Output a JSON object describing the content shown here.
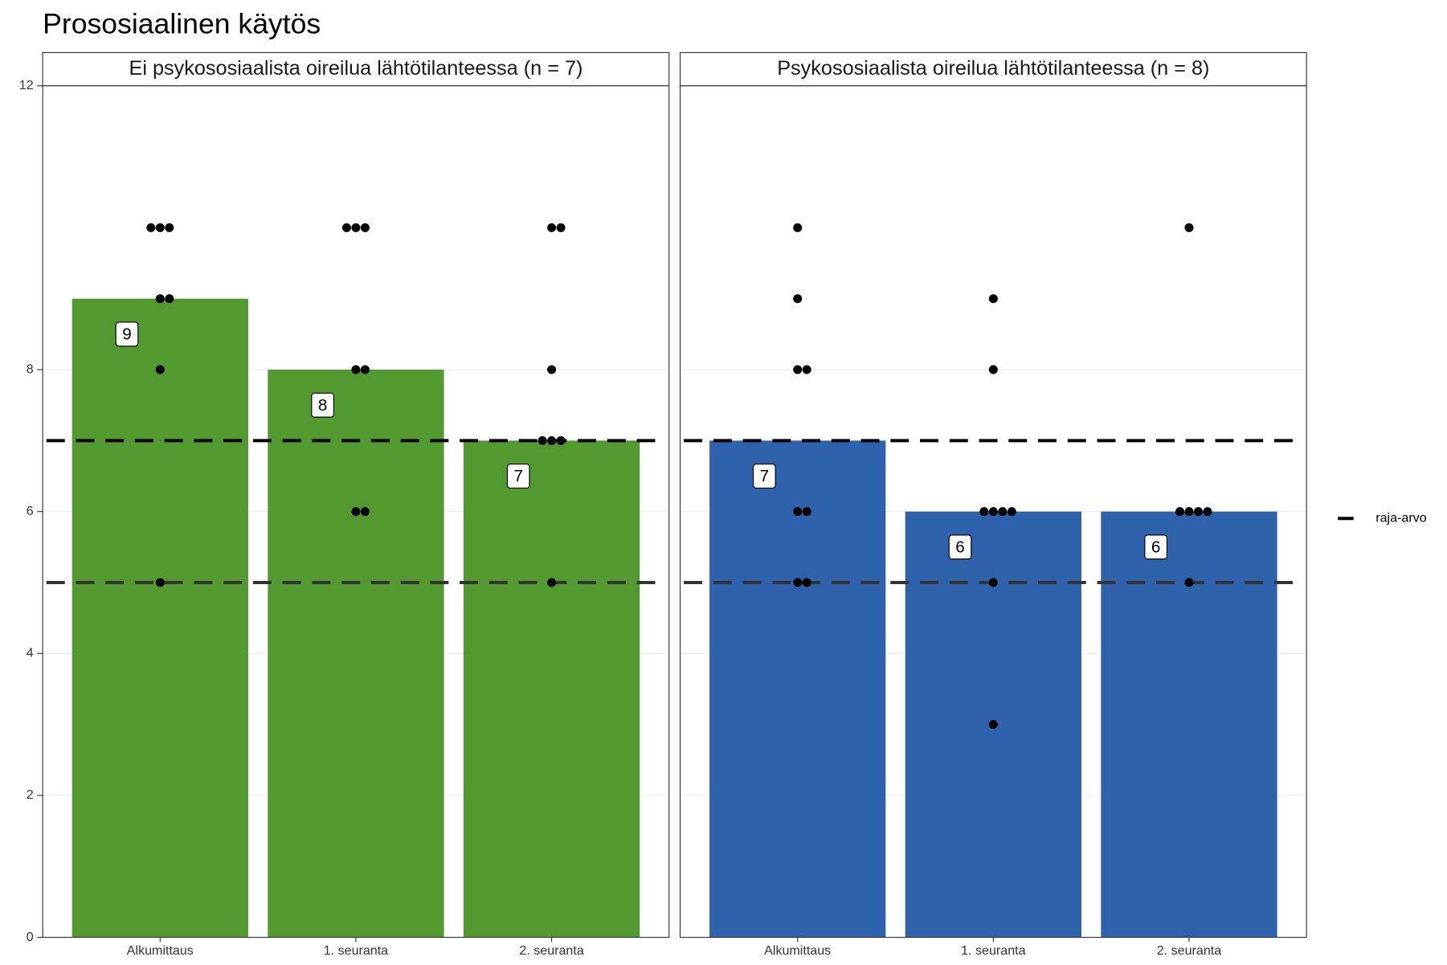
{
  "chart_data": {
    "type": "bar",
    "title": "Prososiaalinen käytös",
    "ylim": [
      0,
      12
    ],
    "yticks": [
      0,
      2,
      4,
      6,
      8,
      12
    ],
    "grid": true,
    "reference_name": "raja-arvo",
    "reference_lines": [
      5,
      7
    ],
    "legend": "right",
    "panels": [
      {
        "title": "Ei psykososiaalista oireilua lähtötilanteessa (n = 7)",
        "color": "#529a2f",
        "categories": [
          "Alkumittaus",
          "1. seuranta",
          "2. seuranta"
        ],
        "values": [
          9,
          8,
          7
        ],
        "points": [
          [
            10,
            10,
            10,
            9,
            9,
            8,
            5
          ],
          [
            10,
            10,
            10,
            8,
            8,
            6,
            6
          ],
          [
            10,
            10,
            8,
            7,
            7,
            7,
            5
          ]
        ]
      },
      {
        "title": "Psykososiaalista oireilua lähtötilanteessa (n = 8)",
        "color": "#2f62ad",
        "categories": [
          "Alkumittaus",
          "1. seuranta",
          "2. seuranta"
        ],
        "values": [
          7,
          6,
          6
        ],
        "points": [
          [
            10,
            9,
            8,
            8,
            6,
            6,
            5,
            5
          ],
          [
            9,
            8,
            6,
            6,
            6,
            6,
            5,
            3
          ],
          [
            10,
            6,
            6,
            6,
            6,
            5
          ]
        ]
      }
    ]
  }
}
